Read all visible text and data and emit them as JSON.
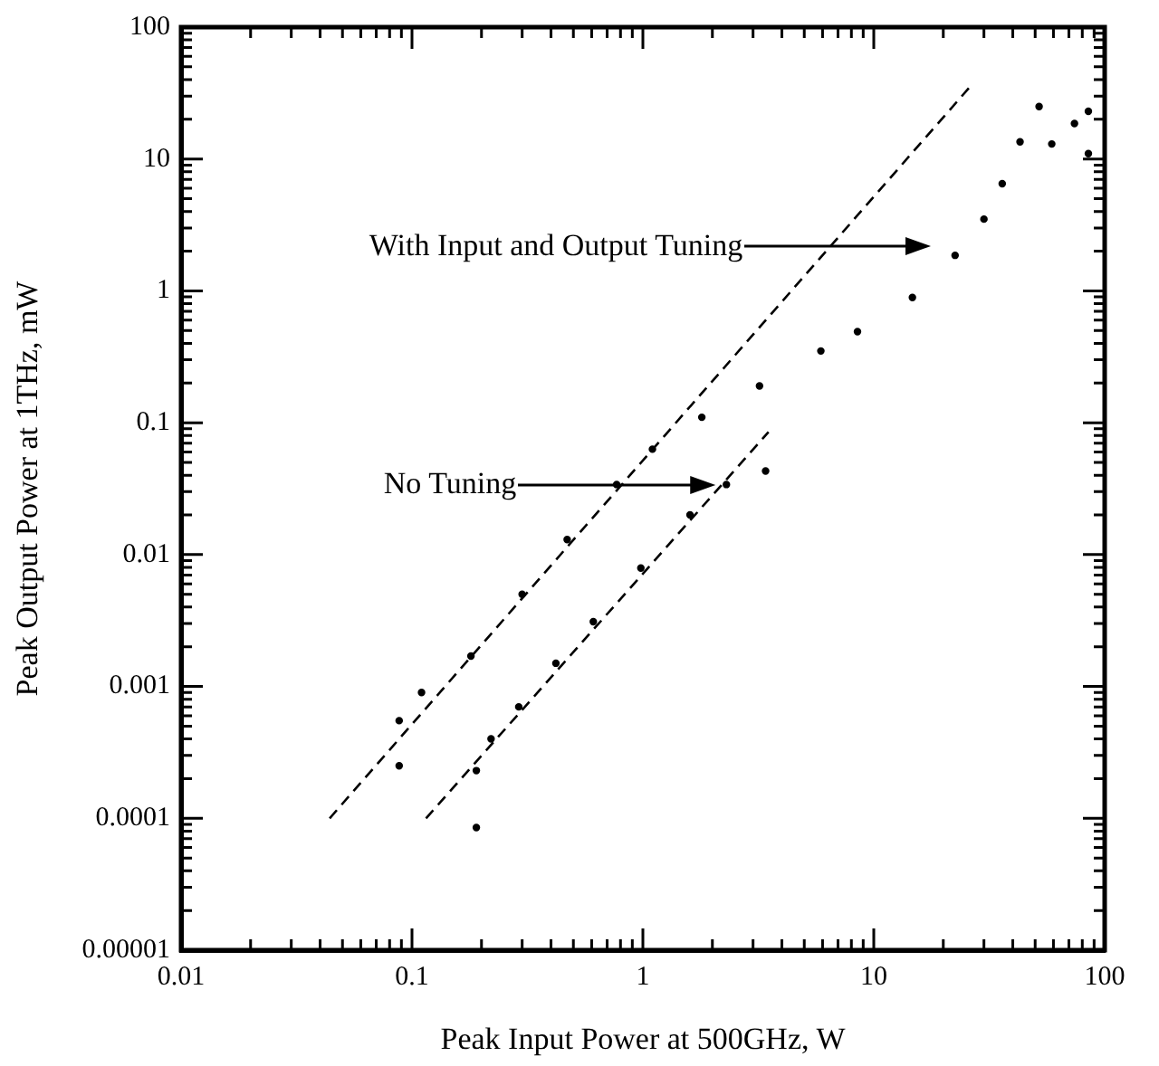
{
  "chart_data": {
    "type": "scatter",
    "xlabel": "Peak Input Power at 500GHz, W",
    "ylabel": "Peak Output Power at 1THz, mW",
    "log": "xy",
    "xlim": [
      0.01,
      100
    ],
    "ylim": [
      1e-05,
      100
    ],
    "xticks": [
      0.01,
      0.1,
      1,
      10,
      100
    ],
    "yticks": [
      {
        "value": 1e-05,
        "label": "0.00001"
      },
      0.0001,
      0.001,
      0.01,
      0.1,
      1,
      10,
      100
    ],
    "annotations": [
      "With Input and Output Tuning",
      "No Tuning"
    ],
    "series": [
      {
        "color": "#000000",
        "marker": "circle",
        "x": [
          0.088,
          0.088,
          0.11,
          0.18,
          0.3,
          0.47,
          0.77,
          1.1,
          1.8,
          3.2,
          5.9,
          8.5,
          14.7,
          22.5,
          30,
          36,
          43,
          52,
          59,
          74,
          85,
          85
        ],
        "values": [
          0.00055,
          0.00025,
          0.0009,
          0.0017,
          0.005,
          0.013,
          0.034,
          0.063,
          0.11,
          0.19,
          0.35,
          0.49,
          0.89,
          1.86,
          3.5,
          6.5,
          13.5,
          25,
          13,
          18.6,
          11,
          23
        ]
      },
      {
        "color": "#000000",
        "marker": "circle",
        "x": [
          0.19,
          0.19,
          0.22,
          0.29,
          0.42,
          0.61,
          0.98,
          1.6,
          2.3,
          3.4
        ],
        "values": [
          8.5e-05,
          0.00023,
          0.0004,
          0.0007,
          0.0015,
          0.0031,
          0.0079,
          0.02,
          0.034,
          0.043
        ]
      },
      {
        "type": "line",
        "color": "#000000",
        "marker": "none",
        "line_style": "dashed",
        "x": [
          0.044,
          26
        ],
        "values": [
          0.0001,
          35
        ]
      },
      {
        "type": "line",
        "color": "#000000",
        "marker": "none",
        "line_style": "dashed",
        "x": [
          0.115,
          3.5
        ],
        "values": [
          0.0001,
          0.085
        ]
      }
    ]
  }
}
